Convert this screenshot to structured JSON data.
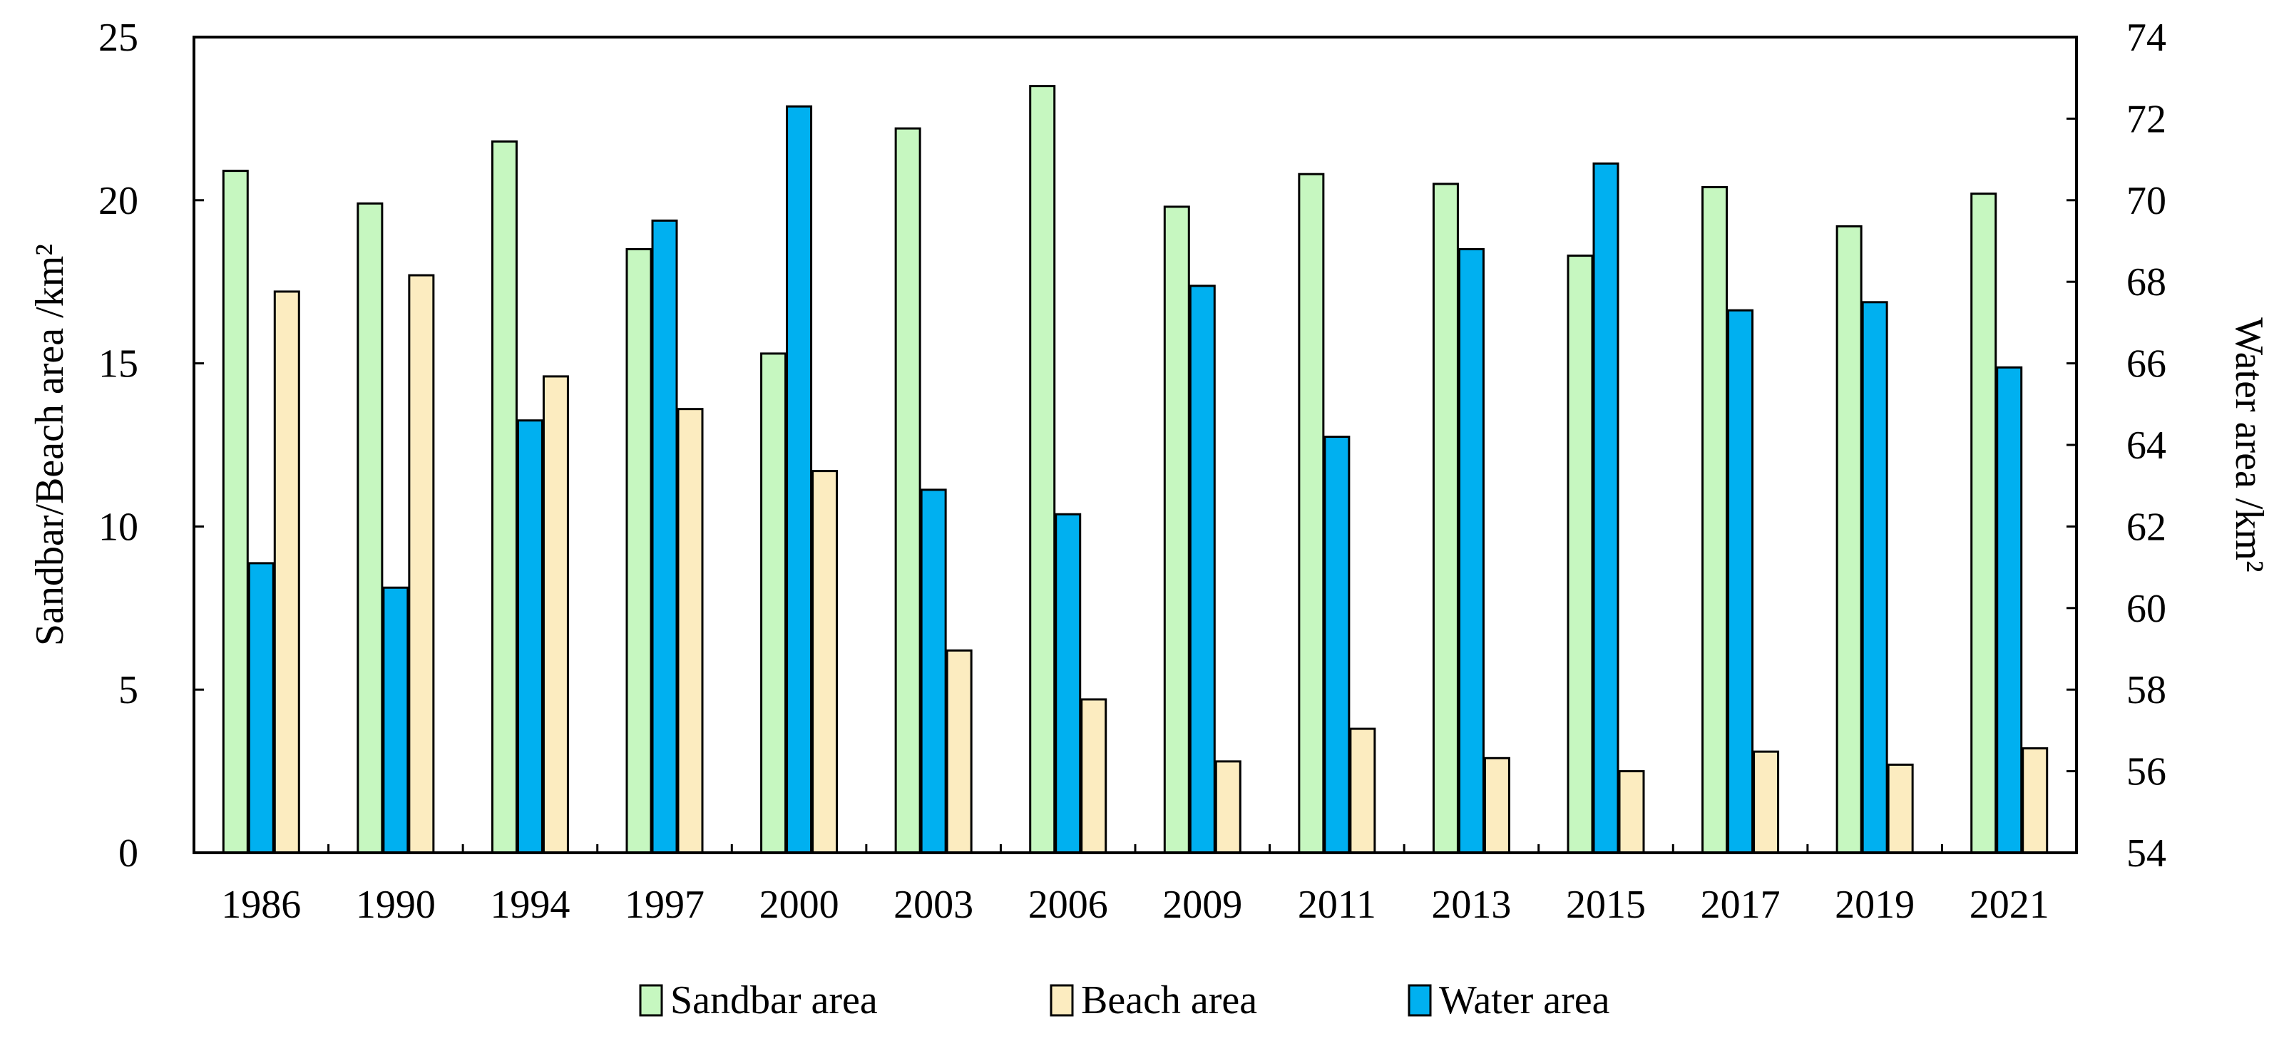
{
  "chart_data": {
    "type": "bar",
    "title": "",
    "xlabel": "",
    "ylabel": "Sandbar/Beach area /km²",
    "y2label": "Water area /km²",
    "categories": [
      "1986",
      "1990",
      "1994",
      "1997",
      "2000",
      "2003",
      "2006",
      "2009",
      "2011",
      "2013",
      "2015",
      "2017",
      "2019",
      "2021"
    ],
    "ylim": [
      0,
      25
    ],
    "yticks": [
      "0",
      "5",
      "10",
      "15",
      "20",
      "25"
    ],
    "y2lim": [
      54,
      74
    ],
    "y2ticks": [
      "54",
      "56",
      "58",
      "60",
      "62",
      "64",
      "66",
      "68",
      "70",
      "72",
      "74"
    ],
    "legend_position": "bottom",
    "series": [
      {
        "name": "Sandbar area",
        "axis": "left",
        "color": "#c6f7c0",
        "values": [
          20.9,
          19.9,
          21.8,
          18.5,
          15.3,
          22.2,
          23.5,
          19.8,
          20.8,
          20.5,
          18.3,
          20.4,
          19.2,
          20.2
        ]
      },
      {
        "name": "Water area",
        "axis": "right",
        "color": "#00b0f0",
        "values": [
          61.1,
          60.5,
          64.6,
          69.5,
          72.3,
          62.9,
          62.3,
          67.9,
          64.2,
          68.8,
          70.9,
          67.3,
          67.5,
          65.9
        ]
      },
      {
        "name": "Beach area",
        "axis": "left",
        "color": "#fcecc0",
        "values": [
          17.2,
          17.7,
          14.6,
          13.6,
          11.7,
          6.2,
          4.7,
          2.8,
          3.8,
          2.9,
          2.5,
          3.1,
          2.7,
          3.2
        ]
      }
    ],
    "legend_order": [
      "Sandbar area",
      "Beach area",
      "Water area"
    ]
  }
}
